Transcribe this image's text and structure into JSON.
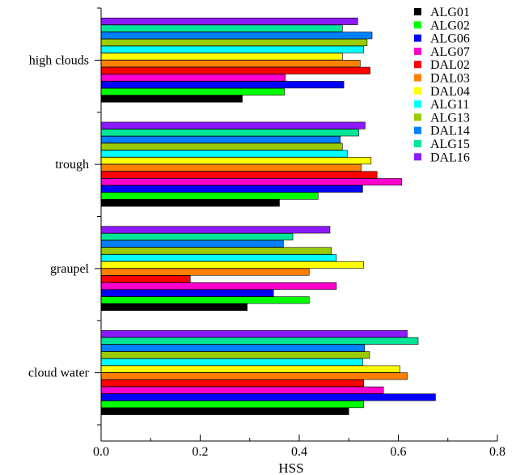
{
  "chart_data": {
    "type": "bar",
    "orientation": "horizontal",
    "xlabel": "HSS",
    "ylabel": "",
    "xlim": [
      0,
      0.8
    ],
    "x_ticks": [
      0.0,
      0.2,
      0.4,
      0.6,
      0.8
    ],
    "x_tick_labels": [
      "0.0",
      "0.2",
      "0.4",
      "0.6",
      "0.8"
    ],
    "grid": false,
    "legend_position": "top-right",
    "categories": [
      "high clouds",
      "trough",
      "graupel",
      "cloud water"
    ],
    "series": [
      {
        "name": "ALG01",
        "color": "#000000",
        "values": [
          0.285,
          0.36,
          0.295,
          0.5
        ]
      },
      {
        "name": "ALG02",
        "color": "#00ff00",
        "values": [
          0.37,
          0.438,
          0.42,
          0.53
        ]
      },
      {
        "name": "ALG06",
        "color": "#0000ff",
        "values": [
          0.49,
          0.528,
          0.348,
          0.675
        ]
      },
      {
        "name": "ALG07",
        "color": "#ff00cc",
        "values": [
          0.372,
          0.607,
          0.475,
          0.57
        ]
      },
      {
        "name": "DAL02",
        "color": "#ff0000",
        "values": [
          0.543,
          0.557,
          0.18,
          0.53
        ]
      },
      {
        "name": "DAL03",
        "color": "#ff8000",
        "values": [
          0.523,
          0.525,
          0.42,
          0.618
        ]
      },
      {
        "name": "DAL04",
        "color": "#ffff00",
        "values": [
          0.487,
          0.545,
          0.53,
          0.603
        ]
      },
      {
        "name": "ALG11",
        "color": "#00ffff",
        "values": [
          0.53,
          0.497,
          0.475,
          0.528
        ]
      },
      {
        "name": "ALG13",
        "color": "#99cc00",
        "values": [
          0.537,
          0.487,
          0.465,
          0.542
        ]
      },
      {
        "name": "DAL14",
        "color": "#0080ff",
        "values": [
          0.547,
          0.483,
          0.368,
          0.532
        ]
      },
      {
        "name": "ALG15",
        "color": "#00e699",
        "values": [
          0.487,
          0.52,
          0.387,
          0.64
        ]
      },
      {
        "name": "DAL16",
        "color": "#8c1aff",
        "values": [
          0.518,
          0.533,
          0.462,
          0.618
        ]
      }
    ]
  }
}
